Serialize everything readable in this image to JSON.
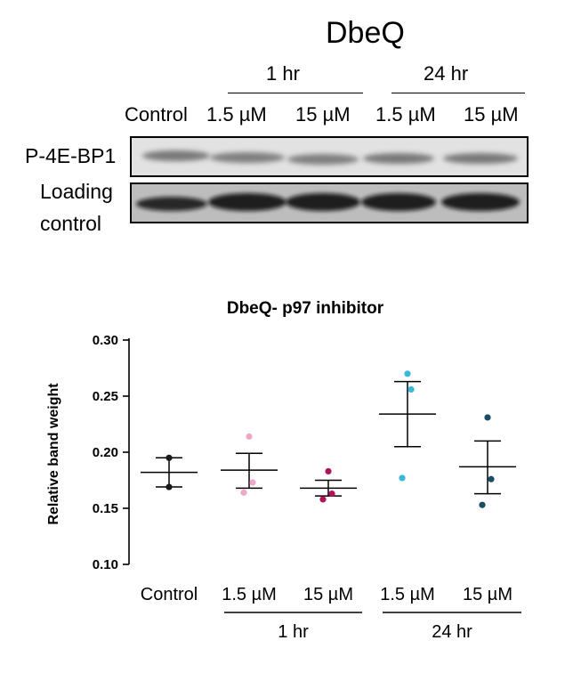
{
  "blot": {
    "title": "DbeQ",
    "time_groups": [
      "1 hr",
      "24 hr"
    ],
    "lanes": [
      "Control",
      "1.5 µM",
      "15 µM",
      "1.5 µM",
      "15 µM"
    ],
    "rows": [
      "P-4E-BP1",
      "Loading",
      "control"
    ]
  },
  "chart_data": {
    "type": "scatter",
    "title": "DbeQ- p97 inhibitor",
    "ylabel": "Relative band weight",
    "xlabel": "",
    "ylim": [
      0.1,
      0.3
    ],
    "yticks": [
      "0.10",
      "0.15",
      "0.20",
      "0.25",
      "0.30"
    ],
    "categories": [
      "Control",
      "1.5 µM",
      "15 µM",
      "1.5 µM",
      "15 µM"
    ],
    "groups": [
      {
        "label": "1 hr",
        "categories": [
          1,
          2
        ]
      },
      {
        "label": "24 hr",
        "categories": [
          3,
          4
        ]
      }
    ],
    "series": [
      {
        "category": "Control",
        "color": "#1a1a1a",
        "points": [
          0.195,
          0.169
        ],
        "mean": 0.182,
        "sem_low": 0.169,
        "sem_high": 0.195
      },
      {
        "category": "1.5 µM",
        "color": "#f0a8c8",
        "points": [
          0.214,
          0.173,
          0.164
        ],
        "mean": 0.184,
        "sem_low": 0.168,
        "sem_high": 0.199
      },
      {
        "category": "15 µM",
        "color": "#b0125e",
        "points": [
          0.183,
          0.163,
          0.158
        ],
        "mean": 0.168,
        "sem_low": 0.161,
        "sem_high": 0.175
      },
      {
        "category": "1.5 µM",
        "color": "#3ab8dc",
        "points": [
          0.27,
          0.256,
          0.177
        ],
        "mean": 0.234,
        "sem_low": 0.205,
        "sem_high": 0.263
      },
      {
        "category": "15 µM",
        "color": "#1a4e63",
        "points": [
          0.231,
          0.176,
          0.153
        ],
        "mean": 0.187,
        "sem_low": 0.163,
        "sem_high": 0.21
      }
    ]
  }
}
